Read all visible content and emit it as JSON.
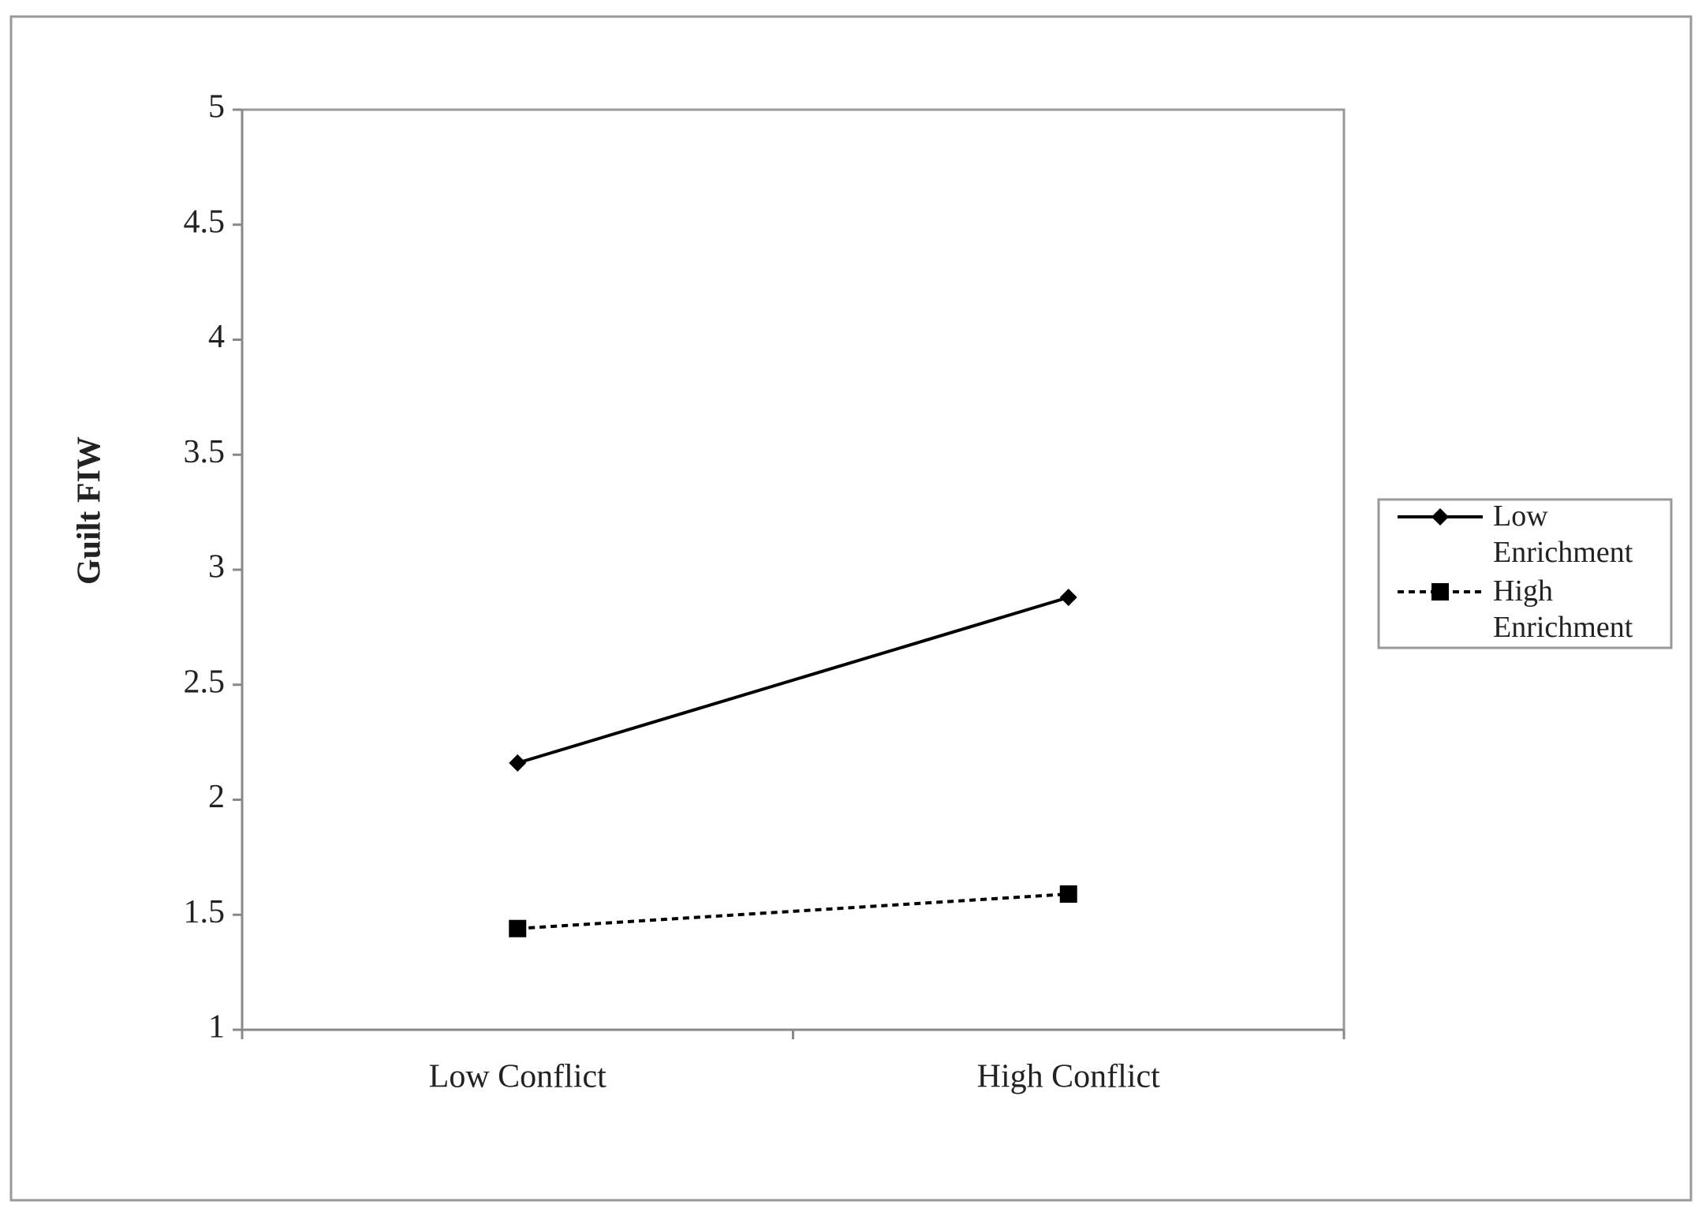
{
  "chart_data": {
    "type": "line",
    "y_label": "Guilt FIW",
    "categories": [
      "Low Conflict",
      "High Conflict"
    ],
    "series": [
      {
        "name": "Low Enrichment",
        "color": "#000000",
        "marker": "diamond",
        "line_style": "solid",
        "values": [
          2.16,
          2.88
        ]
      },
      {
        "name": "High Enrichment",
        "color": "#000000",
        "marker": "square",
        "line_style": "dashed",
        "values": [
          1.44,
          1.59
        ]
      }
    ],
    "ylim": [
      1,
      5
    ],
    "yticks": [
      1,
      1.5,
      2,
      2.5,
      3,
      3.5,
      4,
      4.5,
      5
    ],
    "legend": "right"
  }
}
